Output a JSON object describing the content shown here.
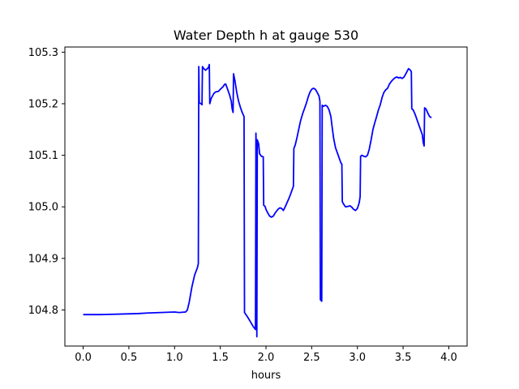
{
  "chart_data": {
    "type": "line",
    "title": "Water Depth h at gauge 530",
    "xlabel": "hours",
    "ylabel": "",
    "xlim": [
      -0.2,
      4.2
    ],
    "ylim": [
      104.73,
      105.31
    ],
    "xticks": [
      0.0,
      0.5,
      1.0,
      1.5,
      2.0,
      2.5,
      3.0,
      3.5,
      4.0
    ],
    "yticks": [
      104.8,
      104.9,
      105.0,
      105.1,
      105.2,
      105.3
    ],
    "xtick_labels": [
      "0.0",
      "0.5",
      "1.0",
      "1.5",
      "2.0",
      "2.5",
      "3.0",
      "3.5",
      "4.0"
    ],
    "ytick_labels": [
      "104.8",
      "104.9",
      "105.0",
      "105.1",
      "105.2",
      "105.3"
    ],
    "grid": false,
    "series": [
      {
        "color": "#0000ff",
        "points": [
          [
            0.0,
            104.791
          ],
          [
            0.2,
            104.791
          ],
          [
            0.4,
            104.792
          ],
          [
            0.6,
            104.793
          ],
          [
            0.7,
            104.794
          ],
          [
            0.85,
            104.795
          ],
          [
            1.0,
            104.796
          ],
          [
            1.05,
            104.795
          ],
          [
            1.12,
            104.796
          ],
          [
            1.14,
            104.8
          ],
          [
            1.16,
            104.815
          ],
          [
            1.19,
            104.845
          ],
          [
            1.22,
            104.868
          ],
          [
            1.25,
            104.882
          ],
          [
            1.26,
            104.89
          ],
          [
            1.265,
            105.272
          ],
          [
            1.27,
            105.202
          ],
          [
            1.29,
            105.2
          ],
          [
            1.3,
            105.198
          ],
          [
            1.305,
            105.272
          ],
          [
            1.32,
            105.268
          ],
          [
            1.34,
            105.265
          ],
          [
            1.37,
            105.27
          ],
          [
            1.38,
            105.276
          ],
          [
            1.385,
            105.2
          ],
          [
            1.4,
            105.21
          ],
          [
            1.43,
            105.22
          ],
          [
            1.45,
            105.223
          ],
          [
            1.48,
            105.224
          ],
          [
            1.5,
            105.228
          ],
          [
            1.53,
            105.233
          ],
          [
            1.55,
            105.238
          ],
          [
            1.56,
            105.238
          ],
          [
            1.58,
            105.228
          ],
          [
            1.6,
            105.218
          ],
          [
            1.62,
            105.205
          ],
          [
            1.63,
            105.19
          ],
          [
            1.64,
            105.183
          ],
          [
            1.645,
            105.258
          ],
          [
            1.66,
            105.245
          ],
          [
            1.68,
            105.222
          ],
          [
            1.7,
            105.205
          ],
          [
            1.72,
            105.193
          ],
          [
            1.74,
            105.183
          ],
          [
            1.76,
            105.175
          ],
          [
            1.765,
            104.795
          ],
          [
            1.8,
            104.786
          ],
          [
            1.83,
            104.777
          ],
          [
            1.86,
            104.768
          ],
          [
            1.885,
            104.762
          ],
          [
            1.89,
            105.143
          ],
          [
            1.895,
            105.1
          ],
          [
            1.9,
            104.748
          ],
          [
            1.905,
            105.13
          ],
          [
            1.92,
            105.122
          ],
          [
            1.93,
            105.103
          ],
          [
            1.95,
            105.098
          ],
          [
            1.97,
            105.097
          ],
          [
            1.975,
            105.003
          ],
          [
            1.99,
            105.001
          ],
          [
            2.0,
            104.995
          ],
          [
            2.02,
            104.988
          ],
          [
            2.04,
            104.982
          ],
          [
            2.06,
            104.98
          ],
          [
            2.08,
            104.982
          ],
          [
            2.1,
            104.988
          ],
          [
            2.13,
            104.995
          ],
          [
            2.15,
            104.998
          ],
          [
            2.17,
            104.997
          ],
          [
            2.19,
            104.993
          ],
          [
            2.21,
            105.0
          ],
          [
            2.23,
            105.008
          ],
          [
            2.25,
            105.016
          ],
          [
            2.27,
            105.025
          ],
          [
            2.29,
            105.035
          ],
          [
            2.3,
            105.04
          ],
          [
            2.305,
            105.113
          ],
          [
            2.32,
            105.12
          ],
          [
            2.34,
            105.135
          ],
          [
            2.36,
            105.152
          ],
          [
            2.38,
            105.168
          ],
          [
            2.4,
            105.18
          ],
          [
            2.42,
            105.19
          ],
          [
            2.44,
            105.2
          ],
          [
            2.46,
            105.212
          ],
          [
            2.48,
            105.222
          ],
          [
            2.5,
            105.228
          ],
          [
            2.52,
            105.23
          ],
          [
            2.54,
            105.228
          ],
          [
            2.56,
            105.222
          ],
          [
            2.58,
            105.215
          ],
          [
            2.59,
            105.205
          ],
          [
            2.595,
            104.82
          ],
          [
            2.61,
            104.817
          ],
          [
            2.615,
            105.197
          ],
          [
            2.63,
            105.195
          ],
          [
            2.65,
            105.197
          ],
          [
            2.67,
            105.195
          ],
          [
            2.69,
            105.188
          ],
          [
            2.71,
            105.175
          ],
          [
            2.72,
            105.16
          ],
          [
            2.74,
            105.133
          ],
          [
            2.76,
            105.115
          ],
          [
            2.78,
            105.105
          ],
          [
            2.8,
            105.095
          ],
          [
            2.82,
            105.085
          ],
          [
            2.83,
            105.083
          ],
          [
            2.835,
            105.01
          ],
          [
            2.85,
            105.005
          ],
          [
            2.87,
            105.0
          ],
          [
            2.9,
            105.001
          ],
          [
            2.92,
            105.002
          ],
          [
            2.94,
            104.999
          ],
          [
            2.96,
            104.995
          ],
          [
            2.98,
            104.993
          ],
          [
            3.0,
            104.997
          ],
          [
            3.02,
            105.008
          ],
          [
            3.03,
            105.02
          ],
          [
            3.035,
            105.098
          ],
          [
            3.05,
            105.1
          ],
          [
            3.07,
            105.098
          ],
          [
            3.09,
            105.097
          ],
          [
            3.11,
            105.1
          ],
          [
            3.13,
            105.112
          ],
          [
            3.15,
            105.13
          ],
          [
            3.17,
            105.15
          ],
          [
            3.19,
            105.163
          ],
          [
            3.21,
            105.175
          ],
          [
            3.23,
            105.188
          ],
          [
            3.25,
            105.198
          ],
          [
            3.27,
            105.212
          ],
          [
            3.29,
            105.222
          ],
          [
            3.31,
            105.227
          ],
          [
            3.33,
            105.23
          ],
          [
            3.35,
            105.238
          ],
          [
            3.37,
            105.243
          ],
          [
            3.39,
            105.247
          ],
          [
            3.41,
            105.25
          ],
          [
            3.43,
            105.252
          ],
          [
            3.45,
            105.25
          ],
          [
            3.47,
            105.251
          ],
          [
            3.49,
            105.249
          ],
          [
            3.51,
            105.252
          ],
          [
            3.53,
            105.258
          ],
          [
            3.55,
            105.265
          ],
          [
            3.56,
            105.268
          ],
          [
            3.58,
            105.265
          ],
          [
            3.59,
            105.262
          ],
          [
            3.595,
            105.19
          ],
          [
            3.61,
            105.188
          ],
          [
            3.63,
            105.18
          ],
          [
            3.65,
            105.17
          ],
          [
            3.67,
            105.16
          ],
          [
            3.69,
            105.15
          ],
          [
            3.71,
            105.14
          ],
          [
            3.72,
            105.125
          ],
          [
            3.73,
            105.118
          ],
          [
            3.735,
            105.192
          ],
          [
            3.75,
            105.19
          ],
          [
            3.77,
            105.182
          ],
          [
            3.79,
            105.175
          ],
          [
            3.81,
            105.173
          ]
        ]
      }
    ]
  }
}
